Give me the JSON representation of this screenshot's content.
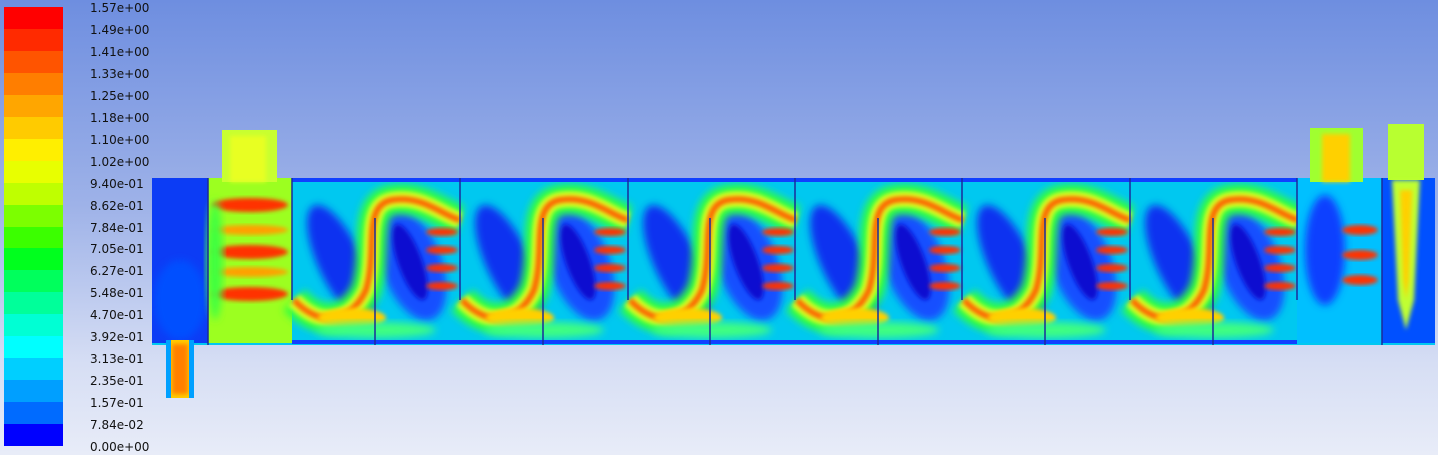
{
  "legend": {
    "labels": [
      "1.57e+00",
      "1.49e+00",
      "1.41e+00",
      "1.33e+00",
      "1.25e+00",
      "1.18e+00",
      "1.10e+00",
      "1.02e+00",
      "9.40e-01",
      "8.62e-01",
      "7.84e-01",
      "7.05e-01",
      "6.27e-01",
      "5.48e-01",
      "4.70e-01",
      "3.92e-01",
      "3.13e-01",
      "2.35e-01",
      "1.57e-01",
      "7.84e-02",
      "0.00e+00"
    ],
    "colors": [
      "#ff0000",
      "#ff2a00",
      "#ff5400",
      "#ff7e00",
      "#ffa600",
      "#ffcb00",
      "#ffef00",
      "#e8ff00",
      "#bfff00",
      "#7cff00",
      "#3bff00",
      "#00ff1e",
      "#00ff5c",
      "#00ff9a",
      "#00ffd4",
      "#00ffff",
      "#00cfff",
      "#009fff",
      "#006bff",
      "#0036ff",
      "#0000ff"
    ]
  },
  "palette": {
    "domain_base": "#00c8f0",
    "low": "#1030f0",
    "mid": "#20ff60",
    "high": "#ff3000",
    "hot": "#ffa000",
    "yellow": "#d8ff20"
  }
}
